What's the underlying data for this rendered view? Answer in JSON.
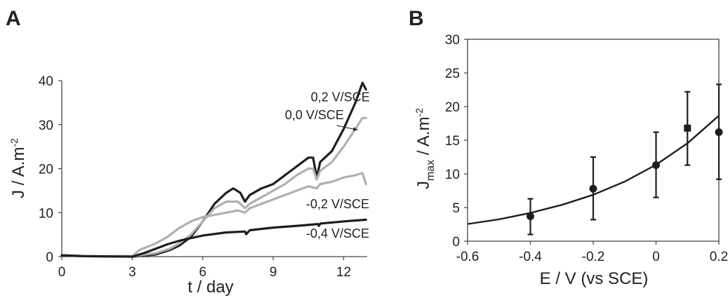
{
  "colors": {
    "dark": "#1e1e1e",
    "light": "#b0b0b0",
    "axis": "#444444"
  },
  "chart_data": [
    {
      "panel": "A",
      "type": "line",
      "xlabel": "t / day",
      "ylabel": "J / A.m",
      "ylabel_sup": "-2",
      "xlim": [
        0,
        13
      ],
      "ylim": [
        0,
        40
      ],
      "x_ticks": [
        {
          "value": 0,
          "label": "0"
        },
        {
          "value": 3,
          "label": "3"
        },
        {
          "value": 6,
          "label": "6"
        },
        {
          "value": 9,
          "label": "9"
        },
        {
          "value": 12,
          "label": "12"
        }
      ],
      "y_ticks": [
        {
          "value": 0,
          "label": "0"
        },
        {
          "value": 10,
          "label": "10"
        },
        {
          "value": 20,
          "label": "20"
        },
        {
          "value": 30,
          "label": "30"
        },
        {
          "value": 40,
          "label": "40"
        }
      ],
      "series": [
        {
          "name": "0,2 V/SCE",
          "color": "dark",
          "points": [
            [
              0,
              0.3
            ],
            [
              1,
              0.1
            ],
            [
              3,
              0
            ],
            [
              4,
              0.5
            ],
            [
              4.6,
              1.5
            ],
            [
              5,
              2.5
            ],
            [
              5.5,
              4.5
            ],
            [
              6,
              8
            ],
            [
              6.5,
              12
            ],
            [
              7,
              14.5
            ],
            [
              7.3,
              15.5
            ],
            [
              7.6,
              14.5
            ],
            [
              7.8,
              12.5
            ],
            [
              8,
              14
            ],
            [
              8.5,
              15.5
            ],
            [
              9,
              16.5
            ],
            [
              9.5,
              18.5
            ],
            [
              10,
              20.5
            ],
            [
              10.5,
              22.5
            ],
            [
              10.7,
              22.5
            ],
            [
              10.85,
              18
            ],
            [
              11,
              21.5
            ],
            [
              11.5,
              24
            ],
            [
              12,
              29
            ],
            [
              12.5,
              35
            ],
            [
              12.8,
              39.5
            ],
            [
              12.95,
              38
            ]
          ]
        },
        {
          "name": "0,0 V/SCE",
          "color": "light",
          "points": [
            [
              0,
              0.3
            ],
            [
              1,
              0.1
            ],
            [
              3,
              0.1
            ],
            [
              4,
              0.8
            ],
            [
              4.6,
              1.8
            ],
            [
              5,
              3
            ],
            [
              5.5,
              5
            ],
            [
              6,
              8
            ],
            [
              6.5,
              11
            ],
            [
              7,
              12.5
            ],
            [
              7.5,
              12.5
            ],
            [
              7.8,
              11
            ],
            [
              8,
              12
            ],
            [
              8.5,
              13.5
            ],
            [
              9,
              15
            ],
            [
              9.5,
              16.5
            ],
            [
              10,
              18.5
            ],
            [
              10.5,
              20
            ],
            [
              10.7,
              20
            ],
            [
              10.85,
              17.5
            ],
            [
              11,
              19.5
            ],
            [
              11.5,
              21.5
            ],
            [
              12,
              25
            ],
            [
              12.5,
              29
            ],
            [
              12.8,
              31.5
            ],
            [
              12.95,
              31.5
            ]
          ]
        },
        {
          "name": "-0,2 V/SCE",
          "color": "light",
          "points": [
            [
              0,
              0.3
            ],
            [
              1,
              0.1
            ],
            [
              3,
              0.1
            ],
            [
              3.3,
              1.5
            ],
            [
              4,
              3
            ],
            [
              4.5,
              4.5
            ],
            [
              5,
              6.5
            ],
            [
              5.5,
              8
            ],
            [
              6,
              9
            ],
            [
              6.5,
              9.5
            ],
            [
              7,
              10
            ],
            [
              7.5,
              10.5
            ],
            [
              7.8,
              10
            ],
            [
              8,
              11
            ],
            [
              8.5,
              12
            ],
            [
              9,
              13
            ],
            [
              9.5,
              14
            ],
            [
              10,
              15
            ],
            [
              10.5,
              16
            ],
            [
              10.85,
              15.5
            ],
            [
              11,
              16.5
            ],
            [
              11.5,
              17
            ],
            [
              12,
              18
            ],
            [
              12.5,
              18.5
            ],
            [
              12.8,
              19
            ],
            [
              12.95,
              16.5
            ]
          ]
        },
        {
          "name": "-0,4 V/SCE",
          "color": "dark",
          "points": [
            [
              0,
              0.3
            ],
            [
              1,
              0.1
            ],
            [
              3,
              0
            ],
            [
              3.5,
              0.8
            ],
            [
              4,
              1.8
            ],
            [
              4.5,
              2.8
            ],
            [
              5,
              3.6
            ],
            [
              5.5,
              4.2
            ],
            [
              6,
              4.8
            ],
            [
              7,
              5.5
            ],
            [
              7.8,
              5.7
            ],
            [
              7.85,
              5.1
            ],
            [
              8,
              6
            ],
            [
              9,
              6.6
            ],
            [
              10,
              7
            ],
            [
              10.9,
              7.4
            ],
            [
              10.95,
              7
            ],
            [
              11,
              7.5
            ],
            [
              12,
              8
            ],
            [
              12.95,
              8.4
            ]
          ]
        }
      ],
      "labels": [
        {
          "series": 0,
          "text": "0,2 V/SCE",
          "at": [
            10.6,
            35.3
          ]
        },
        {
          "series": 1,
          "text": "0,0 V/SCE",
          "at": [
            9.5,
            31.2
          ]
        },
        {
          "series": 2,
          "text": "-0,2 V/SCE",
          "at": [
            10.4,
            11
          ]
        },
        {
          "series": 3,
          "text": "-0,4 V/SCE",
          "at": [
            10.4,
            4.3
          ]
        }
      ],
      "pointer": {
        "from": [
          11.7,
          29.8
        ],
        "to": [
          12.6,
          28.8
        ]
      }
    },
    {
      "panel": "B",
      "type": "scatter",
      "xlabel": "E / V (vs SCE)",
      "ylabel_main": "J",
      "ylabel_sub": "max",
      "ylabel_rest": " / A.m",
      "ylabel_sup": "-2",
      "xlim": [
        -0.6,
        0.2
      ],
      "ylim": [
        0,
        30
      ],
      "x_ticks": [
        {
          "value": -0.6,
          "label": "-0.6"
        },
        {
          "value": -0.4,
          "label": "-0.4"
        },
        {
          "value": -0.2,
          "label": "-0.2"
        },
        {
          "value": 0,
          "label": "0"
        },
        {
          "value": 0.2,
          "label": "0.2"
        }
      ],
      "y_ticks": [
        {
          "value": 0,
          "label": "0"
        },
        {
          "value": 5,
          "label": "5"
        },
        {
          "value": 10,
          "label": "10"
        },
        {
          "value": 15,
          "label": "15"
        },
        {
          "value": 20,
          "label": "20"
        },
        {
          "value": 25,
          "label": "25"
        },
        {
          "value": 30,
          "label": "30"
        }
      ],
      "points": [
        {
          "x": -0.4,
          "y": 3.7,
          "ymin": 1.0,
          "ymax": 6.3,
          "marker": "circle"
        },
        {
          "x": -0.2,
          "y": 7.8,
          "ymin": 3.2,
          "ymax": 12.5,
          "marker": "circle"
        },
        {
          "x": 0,
          "y": 11.3,
          "ymin": 6.5,
          "ymax": 16.2,
          "marker": "circle"
        },
        {
          "x": 0.1,
          "y": 16.8,
          "ymin": 11.3,
          "ymax": 22.2,
          "marker": "square"
        },
        {
          "x": 0.2,
          "y": 16.2,
          "ymin": 9.2,
          "ymax": 23.3,
          "marker": "circle"
        }
      ],
      "fit": {
        "form": "exponential",
        "points": [
          [
            -0.6,
            2.55
          ],
          [
            -0.5,
            3.25
          ],
          [
            -0.4,
            4.2
          ],
          [
            -0.3,
            5.4
          ],
          [
            -0.2,
            6.9
          ],
          [
            -0.1,
            8.85
          ],
          [
            0,
            11.35
          ],
          [
            0.1,
            14.55
          ],
          [
            0.2,
            18.65
          ]
        ]
      }
    }
  ]
}
